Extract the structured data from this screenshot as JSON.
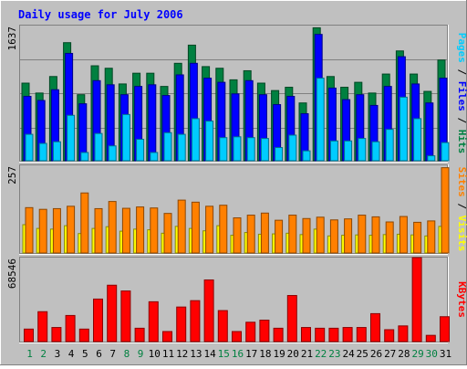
{
  "chart_data": [
    {
      "type": "bar",
      "title": "Daily usage for July 2006",
      "ylabel_parts": [
        "Pages",
        "Files",
        "Hits"
      ],
      "ylabel_colors": [
        "#00ccff",
        "#0000ff",
        "#008040"
      ],
      "y_max_label": "1637",
      "ylim": [
        0,
        1637
      ],
      "categories": [
        "1",
        "2",
        "3",
        "4",
        "5",
        "6",
        "7",
        "8",
        "9",
        "10",
        "11",
        "12",
        "13",
        "14",
        "15",
        "16",
        "17",
        "18",
        "19",
        "20",
        "21",
        "22",
        "23",
        "24",
        "25",
        "26",
        "27",
        "28",
        "29",
        "30",
        "31"
      ],
      "weekend_days": [
        "1",
        "2",
        "8",
        "9",
        "15",
        "16",
        "22",
        "23",
        "29",
        "30"
      ],
      "series": [
        {
          "name": "Hits",
          "color": "#008040",
          "values": [
            940,
            820,
            1020,
            1430,
            800,
            1150,
            1120,
            930,
            1060,
            1060,
            900,
            1180,
            1400,
            1140,
            1120,
            980,
            1090,
            940,
            850,
            890,
            700,
            1610,
            1020,
            890,
            950,
            820,
            1050,
            1330,
            1050,
            840,
            1220
          ]
        },
        {
          "name": "Files",
          "color": "#0000ff",
          "values": [
            780,
            730,
            860,
            1300,
            690,
            970,
            920,
            800,
            900,
            920,
            790,
            1040,
            1180,
            1000,
            950,
            810,
            970,
            800,
            680,
            780,
            570,
            1530,
            880,
            740,
            800,
            670,
            900,
            1260,
            930,
            700,
            1000
          ]
        },
        {
          "name": "Pages",
          "color": "#00ccff",
          "values": [
            320,
            210,
            230,
            550,
            100,
            330,
            180,
            560,
            260,
            100,
            340,
            320,
            510,
            480,
            280,
            290,
            280,
            270,
            160,
            310,
            120,
            1000,
            240,
            240,
            270,
            230,
            380,
            770,
            510,
            60,
            220
          ]
        }
      ]
    },
    {
      "type": "bar",
      "ylabel_parts": [
        "Sites",
        "Visits"
      ],
      "ylabel_colors": [
        "#ff8000",
        "#ffff00"
      ],
      "y_max_label": "257",
      "ylim": [
        0,
        257
      ],
      "categories": [
        "1",
        "2",
        "3",
        "4",
        "5",
        "6",
        "7",
        "8",
        "9",
        "10",
        "11",
        "12",
        "13",
        "14",
        "15",
        "16",
        "17",
        "18",
        "19",
        "20",
        "21",
        "22",
        "23",
        "24",
        "25",
        "26",
        "27",
        "28",
        "29",
        "30",
        "31"
      ],
      "series": [
        {
          "name": "Visits",
          "color": "#ffff00",
          "values": [
            83,
            72,
            70,
            80,
            57,
            72,
            77,
            64,
            70,
            68,
            58,
            78,
            72,
            65,
            80,
            52,
            60,
            55,
            56,
            58,
            54,
            70,
            50,
            52,
            53,
            52,
            54,
            55,
            53,
            50,
            78
          ]
        },
        {
          "name": "Sites",
          "color": "#ff8000",
          "values": [
            133,
            128,
            130,
            137,
            176,
            130,
            151,
            131,
            135,
            132,
            116,
            155,
            149,
            137,
            140,
            103,
            111,
            117,
            96,
            111,
            101,
            105,
            97,
            100,
            111,
            106,
            91,
            107,
            90,
            94,
            250
          ]
        }
      ]
    },
    {
      "type": "bar",
      "ylabel_parts": [
        "KBytes"
      ],
      "ylabel_colors": [
        "#ff0000"
      ],
      "y_max_label": "68546",
      "ylim": [
        0,
        68546
      ],
      "categories": [
        "1",
        "2",
        "3",
        "4",
        "5",
        "6",
        "7",
        "8",
        "9",
        "10",
        "11",
        "12",
        "13",
        "14",
        "15",
        "16",
        "17",
        "18",
        "19",
        "20",
        "21",
        "22",
        "23",
        "24",
        "25",
        "26",
        "27",
        "28",
        "29",
        "30",
        "31"
      ],
      "series": [
        {
          "name": "KBytes",
          "color": "#ff0000",
          "values": [
            10200,
            24400,
            11500,
            21300,
            10200,
            34700,
            46000,
            41300,
            10900,
            32500,
            8200,
            28200,
            33400,
            50300,
            25300,
            8200,
            15800,
            17500,
            10900,
            37600,
            11500,
            10900,
            10900,
            11500,
            11500,
            22800,
            9700,
            12800,
            68500,
            5100,
            20300
          ]
        }
      ]
    }
  ]
}
